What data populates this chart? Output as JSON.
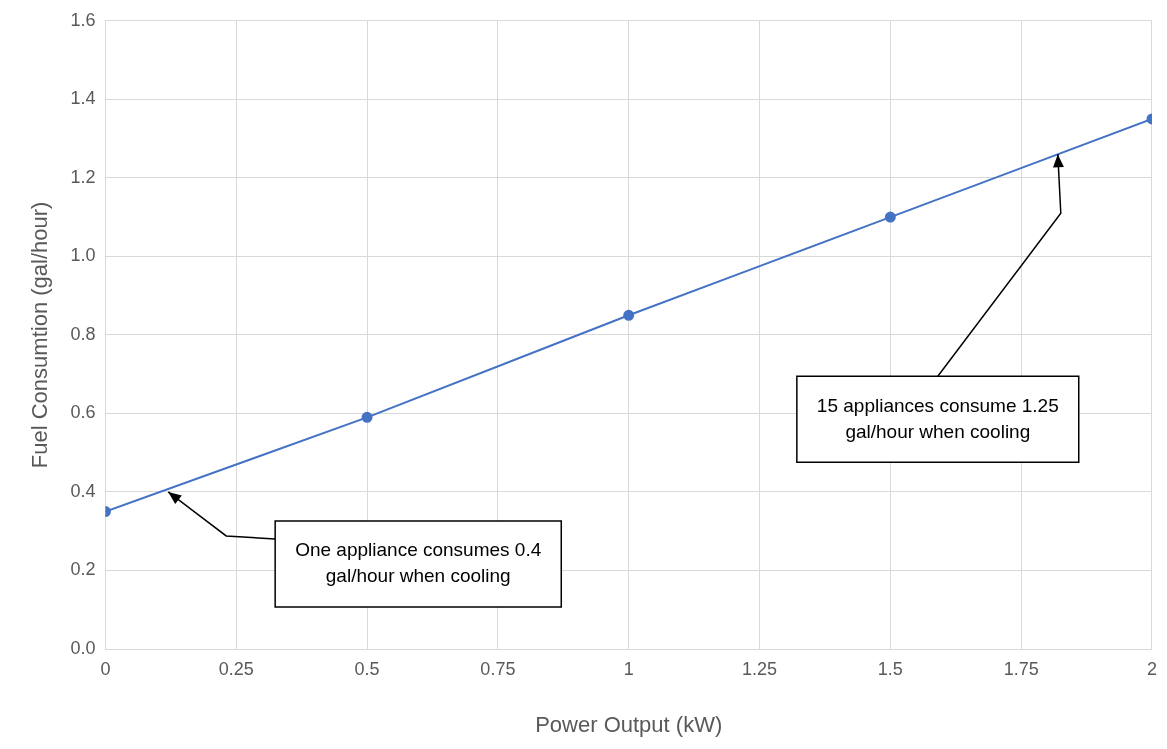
{
  "chart_data": {
    "type": "line",
    "xlabel": "Power Output (kW)",
    "ylabel": "Fuel Consumtion (gal/hour)",
    "x": [
      0,
      0.5,
      1,
      1.5,
      2
    ],
    "series": [
      {
        "color": "#4472c4",
        "values": [
          0.35,
          0.59,
          0.85,
          1.1,
          1.35
        ]
      }
    ],
    "xlim": [
      0,
      2
    ],
    "xticks": [
      0,
      0.25,
      0.5,
      0.75,
      1,
      1.25,
      1.5,
      1.75,
      2
    ],
    "ylim": [
      0,
      1.6
    ],
    "yticks": [
      {
        "value": 0,
        "label": "0.0"
      },
      0.2,
      0.4,
      0.6,
      0.8,
      {
        "value": 1,
        "label": "1.0"
      },
      1.2,
      1.4,
      1.6
    ],
    "grid": true,
    "legend": false,
    "marker": "circle",
    "line_style": "solid",
    "annotations": [
      {
        "text": "One appliance consumes 0.4 gal/hour when cooling",
        "x": 0.12,
        "y": 0.4
      },
      {
        "text": "15 appliances consume 1.25 gal/hour when cooling",
        "x": 1.82,
        "y": 1.26
      }
    ]
  }
}
